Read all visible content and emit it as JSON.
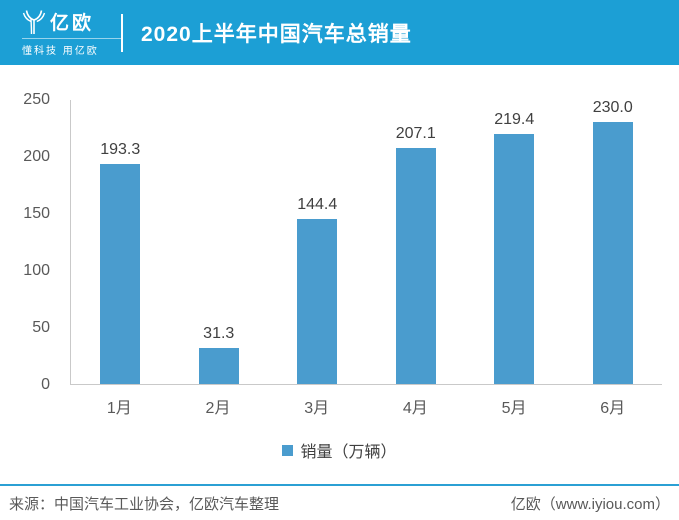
{
  "header": {
    "brand": "亿欧",
    "tagline": "懂科技 用亿欧",
    "title": "2020上半年中国汽车总销量"
  },
  "chart_data": {
    "type": "bar",
    "title": "2020上半年中国汽车总销量",
    "categories": [
      "1月",
      "2月",
      "3月",
      "4月",
      "5月",
      "6月"
    ],
    "values": [
      193.3,
      31.3,
      144.4,
      207.1,
      219.4,
      230.0
    ],
    "data_labels": [
      "193.3",
      "31.3",
      "144.4",
      "207.1",
      "219.4",
      "230.0"
    ],
    "series_name": "销量（万辆）",
    "xlabel": "",
    "ylabel": "",
    "ylim": [
      0,
      250
    ],
    "yticks": [
      0,
      50,
      100,
      150,
      200,
      250
    ],
    "grid": "off",
    "legend_position": "bottom"
  },
  "legend": {
    "label": "销量（万辆）"
  },
  "footer": {
    "source": "来源：中国汽车工业协会，亿欧汽车整理",
    "credit": "亿欧（www.iyiou.com）"
  },
  "colors": {
    "header_bg": "#1C9FD5",
    "bar": "#4A9CCE",
    "footer_line": "#2BA0D4",
    "axis": "#C9C9C9"
  }
}
